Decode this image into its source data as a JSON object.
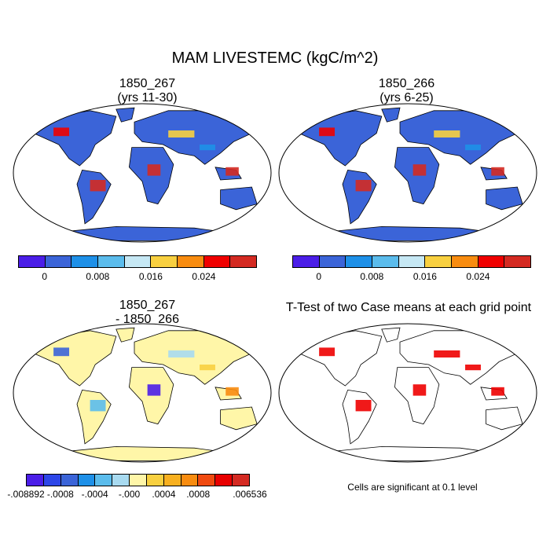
{
  "title": "MAM LIVESTEMC (kgC/m^2)",
  "panels": {
    "top_left": {
      "title_line1": "1850_267",
      "title_line2": "(yrs 11-30)"
    },
    "top_right": {
      "title_line1": "1850_266",
      "title_line2": "(yrs 6-25)"
    },
    "bottom_left": {
      "title_line1": "1850_267",
      "title_line2": "- 1850_266"
    },
    "bottom_right": {
      "title": "T-Test of two Case means at each grid point",
      "note": "Cells are significant at 0.1 level"
    }
  },
  "colorbar_top": {
    "colors": [
      "#4b1ee8",
      "#3b64d8",
      "#1e90e8",
      "#5bbcec",
      "#c6e8f4",
      "#f8d040",
      "#f88c10",
      "#f00000",
      "#d42a22"
    ],
    "tick_labels": [
      "0",
      "0.008",
      "0.016",
      "0.024"
    ]
  },
  "colorbar_bottom": {
    "colors": [
      "#4b1ee8",
      "#2d46e8",
      "#3b64d8",
      "#1e90e8",
      "#5bbcec",
      "#a8daf0",
      "#fff6a8",
      "#f8d040",
      "#f8b020",
      "#f88c10",
      "#f04a10",
      "#e80000",
      "#d42a22"
    ],
    "tick_labels": [
      "-.008892",
      "-.0008",
      "-.0004",
      "-.000",
      ".0004",
      ".0008",
      ".006536"
    ]
  },
  "colors": {
    "ocean": "#ffffff",
    "land_default": "#3b64d8",
    "significant": "#ee0000",
    "diff_land": "#fff6a8"
  }
}
